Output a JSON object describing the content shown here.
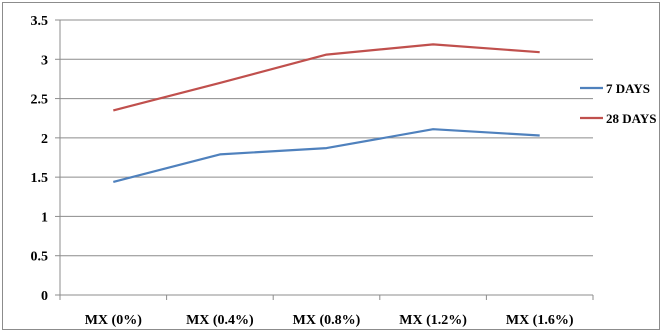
{
  "chart_data": {
    "type": "line",
    "title": "",
    "xlabel": "",
    "ylabel": "",
    "categories": [
      "MX (0%)",
      "MX (0.4%)",
      "MX (0.8%)",
      "MX (1.2%)",
      "MX (1.6%)"
    ],
    "series": [
      {
        "name": "7 DAYS",
        "color": "#4F81BD",
        "values": [
          1.44,
          1.79,
          1.87,
          2.11,
          2.03
        ]
      },
      {
        "name": "28 DAYS",
        "color": "#C0504D",
        "values": [
          2.35,
          2.7,
          3.06,
          3.19,
          3.09
        ]
      }
    ],
    "ylim": [
      0,
      3.5
    ],
    "yticks": [
      "0",
      "0.5",
      "1",
      "1.5",
      "2",
      "2.5",
      "3",
      "3.5"
    ],
    "grid": true,
    "legend_position": "right"
  }
}
